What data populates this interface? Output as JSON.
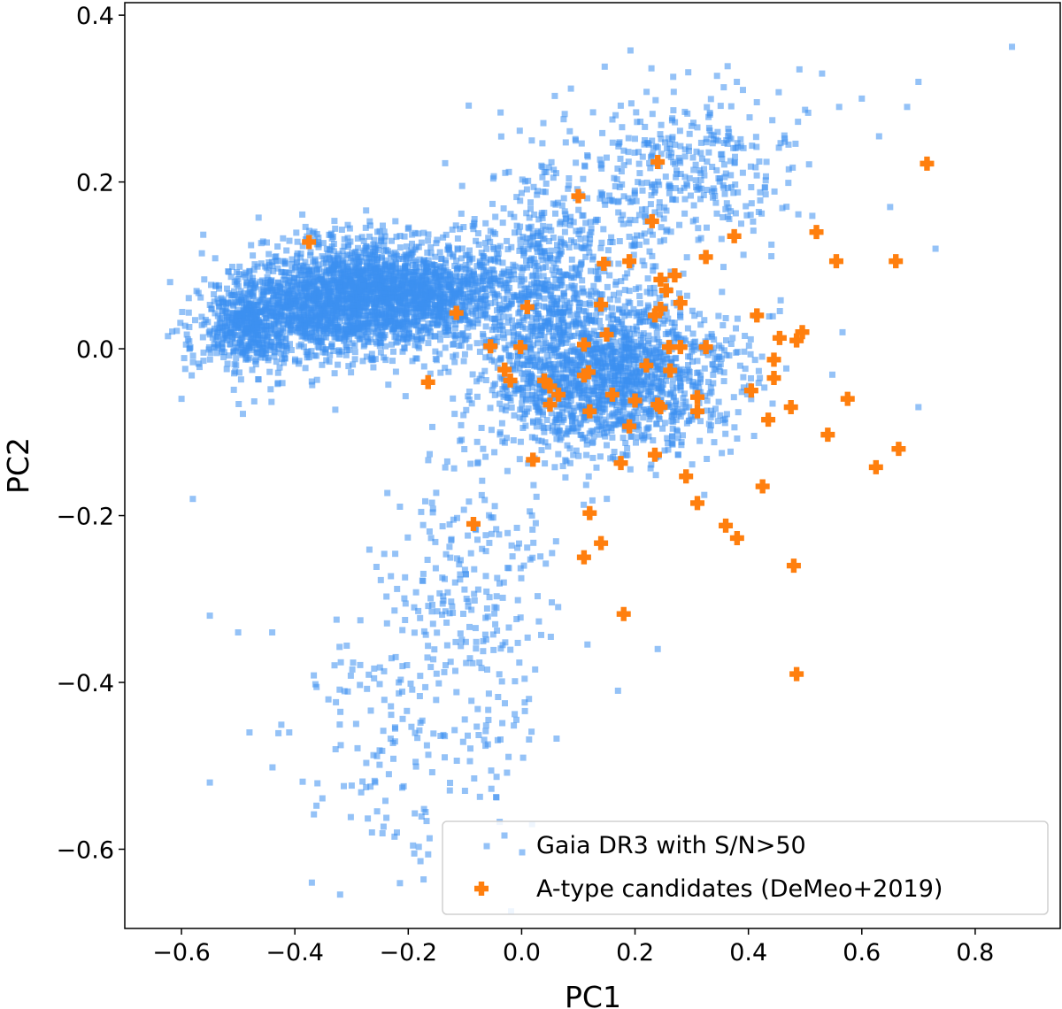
{
  "chart_data": {
    "type": "scatter",
    "title": "",
    "xlabel": "PC1",
    "ylabel": "PC2",
    "xlim": [
      -0.7,
      0.95
    ],
    "ylim": [
      -0.695,
      0.415
    ],
    "grid": false,
    "legend_position": "bottom-right",
    "xticks": [
      {
        "value": -0.6,
        "label": "−0.6"
      },
      {
        "value": -0.4,
        "label": "−0.4"
      },
      {
        "value": -0.2,
        "label": "−0.2"
      },
      {
        "value": 0.0,
        "label": "0.0"
      },
      {
        "value": 0.2,
        "label": "0.2"
      },
      {
        "value": 0.4,
        "label": "0.4"
      },
      {
        "value": 0.6,
        "label": "0.6"
      },
      {
        "value": 0.8,
        "label": "0.8"
      }
    ],
    "yticks": [
      {
        "value": 0.4,
        "label": "0.4"
      },
      {
        "value": 0.2,
        "label": "0.2"
      },
      {
        "value": 0.0,
        "label": "0.0"
      },
      {
        "value": -0.2,
        "label": "−0.2"
      },
      {
        "value": -0.4,
        "label": "−0.4"
      },
      {
        "value": -0.6,
        "label": "−0.6"
      }
    ],
    "series": [
      {
        "name": "Gaia DR3 with S/N>50",
        "marker": "square",
        "color": "#3d8ff0",
        "opacity": 0.55,
        "point_count": 6000,
        "random_seed": 20190,
        "clusters": [
          {
            "weight": 0.27,
            "cx": -0.32,
            "cy": 0.06,
            "sx": 0.075,
            "sy": 0.035
          },
          {
            "weight": 0.16,
            "cx": -0.17,
            "cy": 0.07,
            "sx": 0.07,
            "sy": 0.03
          },
          {
            "weight": 0.1,
            "cx": -0.48,
            "cy": 0.03,
            "sx": 0.05,
            "sy": 0.028
          },
          {
            "weight": 0.3,
            "cx": 0.15,
            "cy": -0.03,
            "sx": 0.11,
            "sy": 0.05
          },
          {
            "weight": 0.06,
            "cx": 0.02,
            "cy": 0.07,
            "sx": 0.06,
            "sy": 0.05
          },
          {
            "weight": 0.06,
            "cx": 0.3,
            "cy": 0.22,
            "sx": 0.1,
            "sy": 0.05
          },
          {
            "weight": 0.04,
            "cx": 0.08,
            "cy": 0.14,
            "sx": 0.09,
            "sy": 0.06
          },
          {
            "weight": 0.05,
            "cx": -0.09,
            "cy": -0.31,
            "sx": 0.07,
            "sy": 0.12
          },
          {
            "weight": 0.02,
            "cx": -0.25,
            "cy": -0.45,
            "sx": 0.07,
            "sy": 0.09
          }
        ],
        "outliers": [
          {
            "x": 0.865,
            "y": 0.362
          },
          {
            "x": 0.7,
            "y": 0.32
          },
          {
            "x": 0.68,
            "y": 0.29
          },
          {
            "x": 0.6,
            "y": 0.3
          },
          {
            "x": 0.53,
            "y": 0.33
          },
          {
            "x": 0.49,
            "y": 0.335
          },
          {
            "x": 0.56,
            "y": 0.29
          },
          {
            "x": -0.62,
            "y": 0.08
          },
          {
            "x": -0.6,
            "y": -0.06
          },
          {
            "x": -0.58,
            "y": -0.18
          },
          {
            "x": -0.55,
            "y": -0.32
          },
          {
            "x": -0.5,
            "y": -0.34
          },
          {
            "x": -0.48,
            "y": -0.46
          },
          {
            "x": -0.55,
            "y": -0.52
          },
          {
            "x": -0.44,
            "y": -0.34
          },
          {
            "x": -0.41,
            "y": -0.46
          },
          {
            "x": -0.37,
            "y": -0.64
          },
          {
            "x": -0.22,
            "y": -0.58
          },
          {
            "x": -0.1,
            "y": -0.53
          },
          {
            "x": 0.17,
            "y": -0.41
          },
          {
            "x": 0.24,
            "y": -0.36
          },
          {
            "x": 0.73,
            "y": 0.12
          },
          {
            "x": 0.7,
            "y": -0.07
          },
          {
            "x": 0.65,
            "y": 0.17
          }
        ]
      },
      {
        "name": "A-type candidates (DeMeo+2019)",
        "marker": "plus",
        "color": "#ff7f0e",
        "points": [
          {
            "x": 0.715,
            "y": 0.222
          },
          {
            "x": 0.24,
            "y": 0.224
          },
          {
            "x": 0.1,
            "y": 0.183
          },
          {
            "x": 0.23,
            "y": 0.153
          },
          {
            "x": 0.52,
            "y": 0.14
          },
          {
            "x": 0.375,
            "y": 0.135
          },
          {
            "x": -0.375,
            "y": 0.128
          },
          {
            "x": 0.325,
            "y": 0.11
          },
          {
            "x": 0.66,
            "y": 0.105
          },
          {
            "x": 0.555,
            "y": 0.105
          },
          {
            "x": 0.19,
            "y": 0.105
          },
          {
            "x": 0.145,
            "y": 0.102
          },
          {
            "x": 0.27,
            "y": 0.088
          },
          {
            "x": 0.245,
            "y": 0.083
          },
          {
            "x": 0.255,
            "y": 0.07
          },
          {
            "x": 0.28,
            "y": 0.055
          },
          {
            "x": 0.14,
            "y": 0.053
          },
          {
            "x": 0.245,
            "y": 0.048
          },
          {
            "x": 0.01,
            "y": 0.05
          },
          {
            "x": 0.235,
            "y": 0.04
          },
          {
            "x": -0.115,
            "y": 0.043
          },
          {
            "x": 0.415,
            "y": 0.04
          },
          {
            "x": 0.495,
            "y": 0.02
          },
          {
            "x": 0.15,
            "y": 0.017
          },
          {
            "x": 0.455,
            "y": 0.013
          },
          {
            "x": 0.485,
            "y": 0.01
          },
          {
            "x": 0.11,
            "y": 0.005
          },
          {
            "x": 0.26,
            "y": 0.002
          },
          {
            "x": 0.28,
            "y": 0.002
          },
          {
            "x": 0.325,
            "y": 0.002
          },
          {
            "x": -0.055,
            "y": 0.003
          },
          {
            "x": -0.002,
            "y": 0.002
          },
          {
            "x": 0.445,
            "y": -0.013
          },
          {
            "x": 0.22,
            "y": -0.02
          },
          {
            "x": -0.03,
            "y": -0.025
          },
          {
            "x": 0.118,
            "y": -0.028
          },
          {
            "x": 0.262,
            "y": -0.026
          },
          {
            "x": 0.11,
            "y": -0.032
          },
          {
            "x": 0.445,
            "y": -0.035
          },
          {
            "x": -0.02,
            "y": -0.038
          },
          {
            "x": 0.04,
            "y": -0.038
          },
          {
            "x": 0.05,
            "y": -0.045
          },
          {
            "x": -0.165,
            "y": -0.04
          },
          {
            "x": 0.405,
            "y": -0.05
          },
          {
            "x": 0.065,
            "y": -0.055
          },
          {
            "x": 0.16,
            "y": -0.055
          },
          {
            "x": 0.31,
            "y": -0.058
          },
          {
            "x": 0.575,
            "y": -0.06
          },
          {
            "x": 0.2,
            "y": -0.062
          },
          {
            "x": 0.05,
            "y": -0.067
          },
          {
            "x": 0.24,
            "y": -0.067
          },
          {
            "x": 0.245,
            "y": -0.07
          },
          {
            "x": 0.475,
            "y": -0.07
          },
          {
            "x": 0.12,
            "y": -0.075
          },
          {
            "x": 0.31,
            "y": -0.075
          },
          {
            "x": 0.435,
            "y": -0.085
          },
          {
            "x": 0.19,
            "y": -0.093
          },
          {
            "x": 0.54,
            "y": -0.103
          },
          {
            "x": 0.665,
            "y": -0.12
          },
          {
            "x": 0.235,
            "y": -0.127
          },
          {
            "x": 0.02,
            "y": -0.133
          },
          {
            "x": 0.175,
            "y": -0.137
          },
          {
            "x": 0.625,
            "y": -0.142
          },
          {
            "x": 0.29,
            "y": -0.153
          },
          {
            "x": 0.425,
            "y": -0.165
          },
          {
            "x": 0.31,
            "y": -0.185
          },
          {
            "x": 0.12,
            "y": -0.197
          },
          {
            "x": -0.085,
            "y": -0.21
          },
          {
            "x": 0.36,
            "y": -0.212
          },
          {
            "x": 0.38,
            "y": -0.227
          },
          {
            "x": 0.14,
            "y": -0.233
          },
          {
            "x": 0.11,
            "y": -0.25
          },
          {
            "x": 0.48,
            "y": -0.26
          },
          {
            "x": 0.18,
            "y": -0.318
          },
          {
            "x": 0.485,
            "y": -0.39
          }
        ]
      }
    ]
  }
}
